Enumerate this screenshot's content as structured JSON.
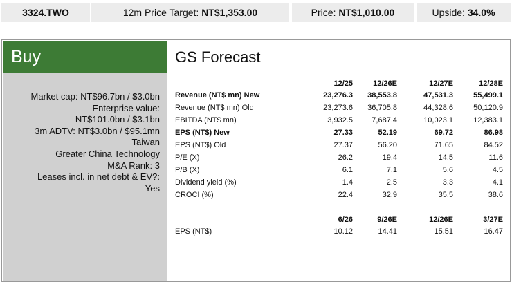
{
  "header": {
    "ticker": "3324.TWO",
    "price_target": {
      "label": "12m Price Target:",
      "value": "NT$1,353.00"
    },
    "price": {
      "label": "Price:",
      "value": "NT$1,010.00"
    },
    "upside": {
      "label": "Upside:",
      "value": "34.0%"
    }
  },
  "rating": "Buy",
  "info_lines": [
    "Market cap: NT$96.7bn / $3.0bn",
    "Enterprise value:",
    "NT$101.0bn / $3.1bn",
    "3m ADTV: NT$3.0bn / $95.1mn",
    "Taiwan",
    "Greater China Technology",
    "M&A Rank: 3",
    "Leases incl. in net debt & EV?:",
    "Yes"
  ],
  "forecast": {
    "title": "GS Forecast",
    "table": {
      "columns": [
        "12/25",
        "12/26E",
        "12/27E",
        "12/28E"
      ],
      "rows": [
        {
          "cells": [
            "Revenue (NT$ mn) New",
            "23,276.3",
            "38,553.8",
            "47,531.3",
            "55,499.1"
          ],
          "bold": true
        },
        {
          "cells": [
            "Revenue (NT$ mn) Old",
            "23,273.6",
            "36,705.8",
            "44,328.6",
            "50,120.9"
          ],
          "bold": false
        },
        {
          "cells": [
            "EBITDA (NT$ mn)",
            "3,932.5",
            "7,687.4",
            "10,023.1",
            "12,383.1"
          ],
          "bold": false
        },
        {
          "cells": [
            "EPS (NT$) New",
            "27.33",
            "52.19",
            "69.72",
            "86.98"
          ],
          "bold": true
        },
        {
          "cells": [
            "EPS (NT$) Old",
            "27.37",
            "56.20",
            "71.65",
            "84.52"
          ],
          "bold": false
        },
        {
          "cells": [
            "P/E (X)",
            "26.2",
            "19.4",
            "14.5",
            "11.6"
          ],
          "bold": false
        },
        {
          "cells": [
            "P/B (X)",
            "6.1",
            "7.1",
            "5.6",
            "4.5"
          ],
          "bold": false
        },
        {
          "cells": [
            "Dividend yield (%)",
            "1.4",
            "2.5",
            "3.3",
            "4.1"
          ],
          "bold": false
        },
        {
          "cells": [
            "CROCI (%)",
            "22.4",
            "32.9",
            "35.5",
            "38.6"
          ],
          "bold": false
        }
      ]
    },
    "quarterly": {
      "columns": [
        "6/26",
        "9/26E",
        "12/26E",
        "3/27E"
      ],
      "rows": [
        {
          "cells": [
            "EPS (NT$)",
            "10.12",
            "14.41",
            "15.51",
            "16.47"
          ],
          "bold": false
        }
      ]
    }
  }
}
